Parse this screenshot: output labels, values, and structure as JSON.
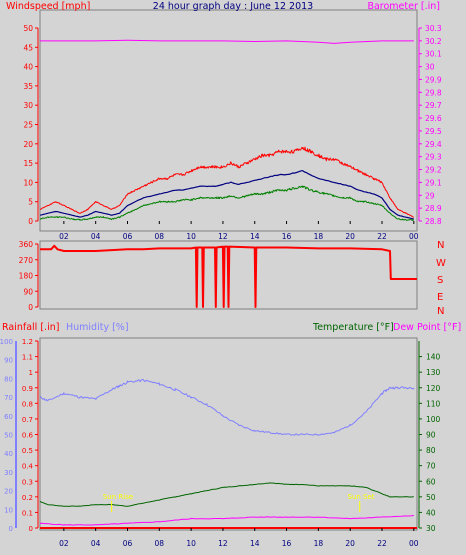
{
  "header": {
    "left_label": "Windspeed [mph]",
    "title": "24 hour graph day : June 12 2013",
    "right_label": "Barometer [.in]"
  },
  "middle": {
    "direction_labels": [
      "N",
      "W",
      "S",
      "E",
      "N"
    ]
  },
  "bottom_header": {
    "rainfall_label": "Rainfall [.in]",
    "humidity_label": "Humidity [%]",
    "temperature_label": "Temperature [°F]",
    "dewpoint_label": "Dew Point [°F]"
  },
  "annotations": {
    "sunrise": "Sun Rise",
    "sunset": "Sun Set"
  },
  "colors": {
    "background": "#d4d4d4",
    "wind_axis": "#ff0000",
    "barometer": "#ff00ff",
    "gust": "#ff0000",
    "average": "#000080",
    "speed": "#008000",
    "direction": "#ff0000",
    "humidity": "#7f7fff",
    "temperature": "#006400",
    "dewpoint": "#ff00ff",
    "rainfall": "#ff0000",
    "annotation": "#ffff00"
  },
  "chart_data": [
    {
      "type": "line",
      "name": "wind-barometer",
      "x_ticks": [
        "02",
        "04",
        "06",
        "08",
        "10",
        "12",
        "14",
        "16",
        "18",
        "20",
        "22",
        "00"
      ],
      "x_tick_hours": [
        2,
        4,
        6,
        8,
        10,
        12,
        14,
        16,
        18,
        20,
        22,
        24
      ],
      "xlim": [
        0.5,
        24.2
      ],
      "ylim_left": [
        0,
        50
      ],
      "y_ticks_left": [
        0,
        5,
        10,
        15,
        20,
        25,
        30,
        35,
        40,
        45,
        50
      ],
      "ylim_right": [
        28.8,
        30.3
      ],
      "y_ticks_right": [
        "28.8",
        "28.9",
        "29",
        "29.1",
        "29.2",
        "29.3",
        "29.4",
        "29.5",
        "29.6",
        "29.7",
        "29.8",
        "29.9",
        "30",
        "30.1",
        "30.2",
        "30.3"
      ],
      "series": [
        {
          "key": "gust",
          "x": [
            0.5,
            1,
            1.5,
            2,
            2.5,
            3,
            3.5,
            4,
            4.5,
            5,
            5.5,
            6,
            6.5,
            7,
            7.5,
            8,
            8.5,
            9,
            9.5,
            10,
            10.5,
            11,
            11.5,
            12,
            12.5,
            13,
            13.5,
            14,
            14.5,
            15,
            15.5,
            16,
            16.5,
            17,
            17.5,
            18,
            18.5,
            19,
            19.5,
            20,
            20.5,
            21,
            21.5,
            22,
            22.5,
            23,
            23.5,
            24
          ],
          "values": [
            3,
            4,
            5,
            4,
            3,
            2,
            3,
            5,
            4,
            3,
            4,
            7,
            8,
            9,
            10,
            11,
            11,
            12,
            12,
            13,
            14,
            14,
            14,
            14,
            15,
            14,
            15,
            16,
            17,
            17,
            18,
            18,
            18,
            19,
            18,
            17,
            16,
            16,
            15,
            14,
            13,
            12,
            11,
            10,
            6,
            3,
            2,
            1
          ]
        },
        {
          "key": "average",
          "x": [
            0.5,
            1,
            1.5,
            2,
            2.5,
            3,
            3.5,
            4,
            4.5,
            5,
            5.5,
            6,
            6.5,
            7,
            7.5,
            8,
            8.5,
            9,
            9.5,
            10,
            10.5,
            11,
            11.5,
            12,
            12.5,
            13,
            13.5,
            14,
            14.5,
            15,
            15.5,
            16,
            16.5,
            17,
            17.5,
            18,
            18.5,
            19,
            19.5,
            20,
            20.5,
            21,
            21.5,
            22,
            22.5,
            23,
            23.5,
            24
          ],
          "values": [
            1.5,
            2,
            2.5,
            2,
            1.5,
            1,
            1.5,
            2.5,
            2,
            1.5,
            2,
            4,
            5,
            6,
            6.5,
            7,
            7.5,
            8,
            8,
            8.5,
            9,
            9,
            9,
            9.5,
            10,
            9.5,
            10,
            10.5,
            11,
            11.5,
            12,
            12,
            12.5,
            13,
            12,
            11,
            10.5,
            10,
            9.5,
            9,
            8,
            7.5,
            7,
            6,
            3,
            1.5,
            1,
            0.5
          ]
        },
        {
          "key": "speed",
          "x": [
            0.5,
            1,
            1.5,
            2,
            2.5,
            3,
            3.5,
            4,
            4.5,
            5,
            5.5,
            6,
            6.5,
            7,
            7.5,
            8,
            8.5,
            9,
            9.5,
            10,
            10.5,
            11,
            11.5,
            12,
            12.5,
            13,
            13.5,
            14,
            14.5,
            15,
            15.5,
            16,
            16.5,
            17,
            17.5,
            18,
            18.5,
            19,
            19.5,
            20,
            20.5,
            21,
            21.5,
            22,
            22.5,
            23,
            23.5,
            24
          ],
          "values": [
            0.5,
            1,
            1,
            1,
            0.5,
            0.3,
            0.5,
            1,
            1,
            0.5,
            1,
            2,
            3,
            4,
            4.5,
            5,
            5,
            5,
            5.5,
            5.5,
            6,
            6,
            6,
            6,
            6.5,
            6,
            6.5,
            7,
            7,
            7.5,
            8,
            8,
            8.5,
            9,
            8,
            7.5,
            7,
            6.5,
            6,
            6,
            5,
            5,
            4.5,
            4,
            2,
            0.5,
            0.3,
            0.2
          ]
        },
        {
          "key": "barometer",
          "x": [
            0.5,
            2,
            4,
            6,
            8,
            10,
            12,
            14,
            16,
            18,
            19,
            20,
            22,
            24
          ],
          "values": [
            30.2,
            30.2,
            30.2,
            30.205,
            30.2,
            30.2,
            30.2,
            30.195,
            30.2,
            30.19,
            30.18,
            30.19,
            30.2,
            30.2
          ]
        }
      ]
    },
    {
      "type": "line",
      "name": "wind-direction",
      "x_ticks": [
        "02",
        "04",
        "06",
        "08",
        "10",
        "12",
        "14",
        "16",
        "18",
        "20",
        "22",
        "00"
      ],
      "ylim": [
        0,
        360
      ],
      "y_ticks": [
        0,
        90,
        180,
        270,
        360
      ],
      "y_tick_labels": [
        "0",
        "90",
        "180",
        "270",
        "360"
      ],
      "series": [
        {
          "key": "direction",
          "x": [
            0.5,
            1.2,
            1.4,
            1.6,
            2,
            4,
            6,
            7,
            8,
            10,
            10.3,
            10.35,
            10.4,
            10.7,
            10.75,
            10.8,
            11.5,
            11.55,
            11.6,
            12,
            12.05,
            12.1,
            12.3,
            12.35,
            12.4,
            14,
            14.05,
            14.1,
            16,
            18,
            20,
            22,
            22.5,
            22.55,
            23,
            24.2
          ],
          "values": [
            330,
            330,
            350,
            330,
            320,
            320,
            330,
            330,
            335,
            335,
            340,
            0,
            340,
            340,
            0,
            340,
            340,
            0,
            340,
            345,
            0,
            345,
            345,
            0,
            345,
            340,
            0,
            340,
            340,
            335,
            335,
            330,
            320,
            160,
            160,
            160
          ]
        }
      ]
    },
    {
      "type": "line",
      "name": "rain-humidity-temperature",
      "x_ticks": [
        "02",
        "04",
        "06",
        "08",
        "10",
        "12",
        "14",
        "16",
        "18",
        "20",
        "22",
        "00"
      ],
      "ylim_humidity": [
        0,
        100
      ],
      "y_ticks_humidity": [
        0,
        10,
        20,
        30,
        40,
        50,
        60,
        70,
        80,
        90,
        100
      ],
      "ylim_rain": [
        0,
        1.2
      ],
      "y_ticks_rain": [
        "0",
        "0.1",
        "0.2",
        "0.3",
        "0.4",
        "0.5",
        "0.6",
        "0.7",
        "0.8",
        "0.9",
        "1",
        "1.1",
        "1.2"
      ],
      "ylim_temp": [
        30,
        150
      ],
      "y_ticks_temp": [
        30,
        40,
        50,
        60,
        70,
        80,
        90,
        100,
        110,
        120,
        130,
        140
      ],
      "series": [
        {
          "key": "humidity",
          "x": [
            0.5,
            1,
            2,
            3,
            4,
            5,
            5.5,
            6,
            7,
            8,
            9,
            10,
            11,
            12,
            13,
            14,
            15,
            16,
            17,
            18,
            19,
            20,
            21,
            22,
            22.5,
            23,
            24
          ],
          "values": [
            70,
            68,
            72,
            70,
            69,
            74,
            76,
            78,
            79,
            77,
            74,
            70,
            66,
            60,
            55,
            52,
            51,
            50,
            50,
            50,
            51,
            55,
            62,
            72,
            75,
            75,
            75
          ]
        },
        {
          "key": "temperature",
          "x": [
            0.5,
            1,
            2,
            3,
            4,
            5,
            6,
            7,
            8,
            9,
            10,
            11,
            12,
            13,
            14,
            15,
            16,
            17,
            18,
            19,
            20,
            21,
            22,
            22.5,
            23,
            24
          ],
          "values": [
            47,
            45,
            44,
            44,
            45,
            45,
            44,
            46,
            48,
            50,
            52,
            54,
            56,
            57,
            58,
            59,
            58,
            58,
            57,
            57,
            57,
            56,
            52,
            50,
            50,
            50
          ]
        },
        {
          "key": "dewpoint",
          "x": [
            0.5,
            2,
            4,
            6,
            8,
            10,
            12,
            14,
            16,
            18,
            20,
            22,
            24
          ],
          "values": [
            33,
            32,
            32,
            33,
            34,
            36,
            36,
            37,
            37,
            37,
            36,
            37,
            38
          ]
        },
        {
          "key": "rainfall",
          "x": [
            0.5,
            24.2
          ],
          "values": [
            0,
            0
          ]
        }
      ]
    }
  ]
}
